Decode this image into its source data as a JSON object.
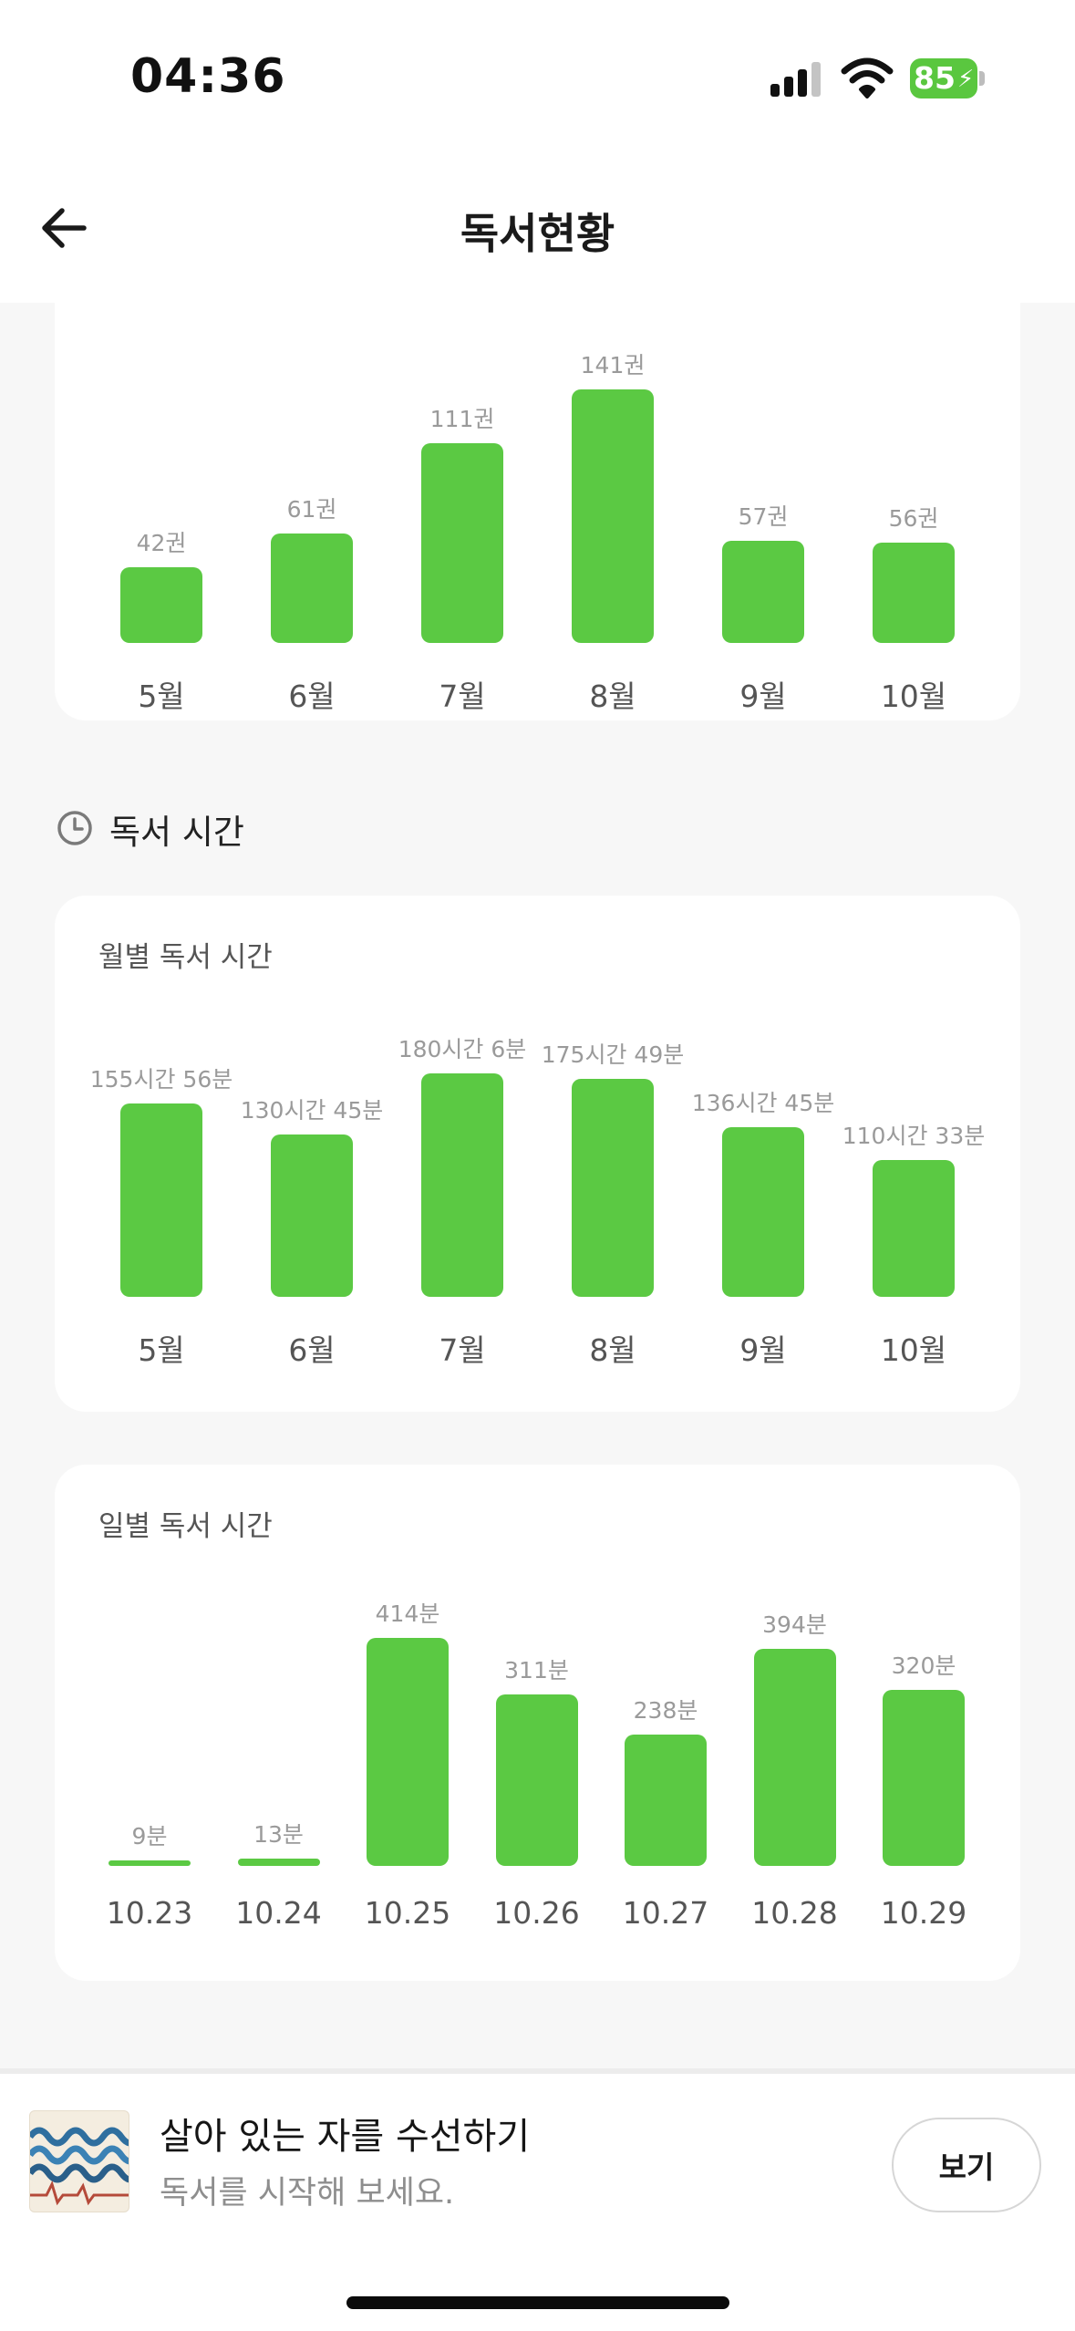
{
  "status_bar": {
    "time": "04:36",
    "battery": "85"
  },
  "header": {
    "title": "독서현황"
  },
  "monthly_books": {
    "chart_data": {
      "type": "bar",
      "categories": [
        "5월",
        "6월",
        "7월",
        "8월",
        "9월",
        "10월"
      ],
      "values": [
        42,
        61,
        111,
        141,
        57,
        56
      ],
      "value_labels": [
        "42권",
        "61권",
        "111권",
        "141권",
        "57권",
        "56권"
      ]
    }
  },
  "reading_time_section": {
    "title": "독서 시간"
  },
  "monthly_time": {
    "title": "월별 독서 시간",
    "chart_data": {
      "type": "bar",
      "categories": [
        "5월",
        "6월",
        "7월",
        "8월",
        "9월",
        "10월"
      ],
      "values": [
        155.93,
        130.75,
        180.1,
        175.82,
        136.75,
        110.55
      ],
      "value_labels": [
        "155시간 56분",
        "130시간 45분",
        "180시간 6분",
        "175시간 49분",
        "136시간 45분",
        "110시간 33분"
      ]
    }
  },
  "daily_time": {
    "title": "일별 독서 시간",
    "chart_data": {
      "type": "bar",
      "categories": [
        "10.23",
        "10.24",
        "10.25",
        "10.26",
        "10.27",
        "10.28",
        "10.29"
      ],
      "values": [
        9,
        13,
        414,
        311,
        238,
        394,
        320
      ],
      "value_labels": [
        "9분",
        "13분",
        "414분",
        "311분",
        "238분",
        "394분",
        "320분"
      ]
    }
  },
  "banner": {
    "book_title": "살아 있는 자를 수선하기",
    "subtitle": "독서를 시작해 보세요.",
    "button_label": "보기"
  },
  "colors": {
    "bar": "#5bc943",
    "battery": "#5ac73f"
  }
}
